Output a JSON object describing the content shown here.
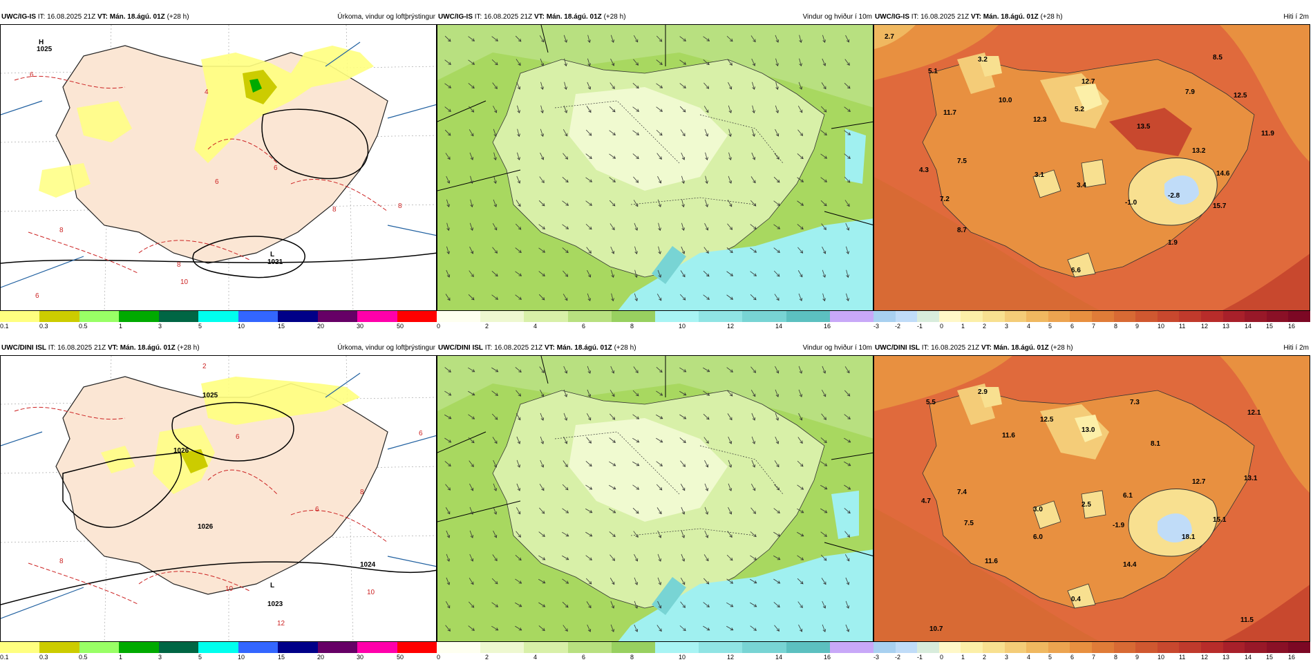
{
  "colors": {
    "land": "#fbe6d4",
    "sea_precip": "#ffffff",
    "precip_light": "#ffff80",
    "precip_med": "#cccc00",
    "precip_green": "#00aa00",
    "isobar": "#000000",
    "temp_isoline": "#cc2222",
    "wind_low": "#f0fad0",
    "wind_mid": "#a8d860",
    "wind_high": "#7ec850",
    "wind_cyan": "#a0f0f0",
    "temp_warm": "#e06a3c",
    "temp_hot": "#c84030",
    "temp_cold": "#f8e8a0"
  },
  "rows": [
    {
      "model": "UWC/IG-IS",
      "it_label": "IT: 16.08.2025 21Z",
      "vt_label": "VT: Mán. 18.ágú. 01Z",
      "lead": "(+28 h)",
      "panels": [
        {
          "title": "Úrkoma, vindur og loftþrýstingur",
          "pressure_labels": [
            "1025",
            "1021",
            "H",
            "L"
          ],
          "temp_labels": [
            "6",
            "4",
            "6",
            "6",
            "8",
            "10",
            "8",
            "8",
            "8",
            "6"
          ]
        },
        {
          "title": "Vindur og hviður í 10m"
        },
        {
          "title": "Hiti í 2m",
          "values": [
            "2.7",
            "5.1",
            "3.2",
            "8.5",
            "10.0",
            "12.7",
            "7.9",
            "12.5",
            "11.7",
            "12.3",
            "5.2",
            "13.5",
            "11.9",
            "7.5",
            "13.2",
            "4.3",
            "3.1",
            "3.4",
            "14.6",
            "7.2",
            "-1.0",
            "-2.8",
            "15.7",
            "8.7",
            "6.6",
            "1.9"
          ]
        }
      ]
    },
    {
      "model": "UWC/DINI ISL",
      "it_label": "IT: 16.08.2025 21Z",
      "vt_label": "VT: Mán. 18.ágú. 01Z",
      "lead": "(+28 h)",
      "panels": [
        {
          "title": "Úrkoma, vindur og loftþrýstingur",
          "pressure_labels": [
            "1023",
            "1024",
            "1026",
            "1026",
            "1025",
            "L"
          ],
          "temp_labels": [
            "2",
            "6",
            "6",
            "8",
            "8",
            "10",
            "10",
            "12",
            "6"
          ]
        },
        {
          "title": "Vindur og hviður í 10m"
        },
        {
          "title": "Hiti í 2m",
          "values": [
            "5.5",
            "2.9",
            "7.3",
            "12.1",
            "12.5",
            "13.0",
            "11.6",
            "8.1",
            "13.1",
            "12.7",
            "7.4",
            "4.7",
            "6.1",
            "3.0",
            "2.5",
            "7.5",
            "-1.9",
            "15.1",
            "6.0",
            "18.1",
            "11.6",
            "14.4",
            "0.4",
            "10.7",
            "11.5"
          ]
        }
      ]
    }
  ],
  "legends": {
    "precip": {
      "colors": [
        "#ffff80",
        "#cccc00",
        "#99ff66",
        "#00aa00",
        "#006644",
        "#00ffee",
        "#3366ff",
        "#000088",
        "#660066",
        "#ff00aa",
        "#ff0000"
      ],
      "ticks": [
        "0.1",
        "0.3",
        "0.5",
        "1",
        "3",
        "5",
        "10",
        "15",
        "20",
        "30",
        "50"
      ]
    },
    "wind": {
      "colors": [
        "#fefff0",
        "#eef8d0",
        "#d8f0a8",
        "#b8e080",
        "#98d060",
        "#a8f4f4",
        "#90e4e4",
        "#78d4d4",
        "#5cc0c0",
        "#c8a8f8"
      ],
      "ticks": [
        "0",
        "2",
        "4",
        "6",
        "8",
        "10",
        "12",
        "14",
        "16"
      ]
    },
    "temp": {
      "colors": [
        "#a8d0f0",
        "#c0dcf8",
        "#d8ecdc",
        "#fff8c8",
        "#fcefa8",
        "#f8e090",
        "#f4cc78",
        "#f0b860",
        "#eca450",
        "#e89040",
        "#e07c38",
        "#d86a34",
        "#d05830",
        "#c8482e",
        "#c03a2c",
        "#b82c2a",
        "#a8202a",
        "#981828",
        "#8a1026",
        "#7c0824",
        "#700020"
      ],
      "ticks": [
        "-3",
        "-2",
        "-1",
        "0",
        "1",
        "2",
        "3",
        "4",
        "5",
        "6",
        "7",
        "8",
        "9",
        "10",
        "11",
        "12",
        "13",
        "14",
        "15",
        "16"
      ]
    }
  }
}
